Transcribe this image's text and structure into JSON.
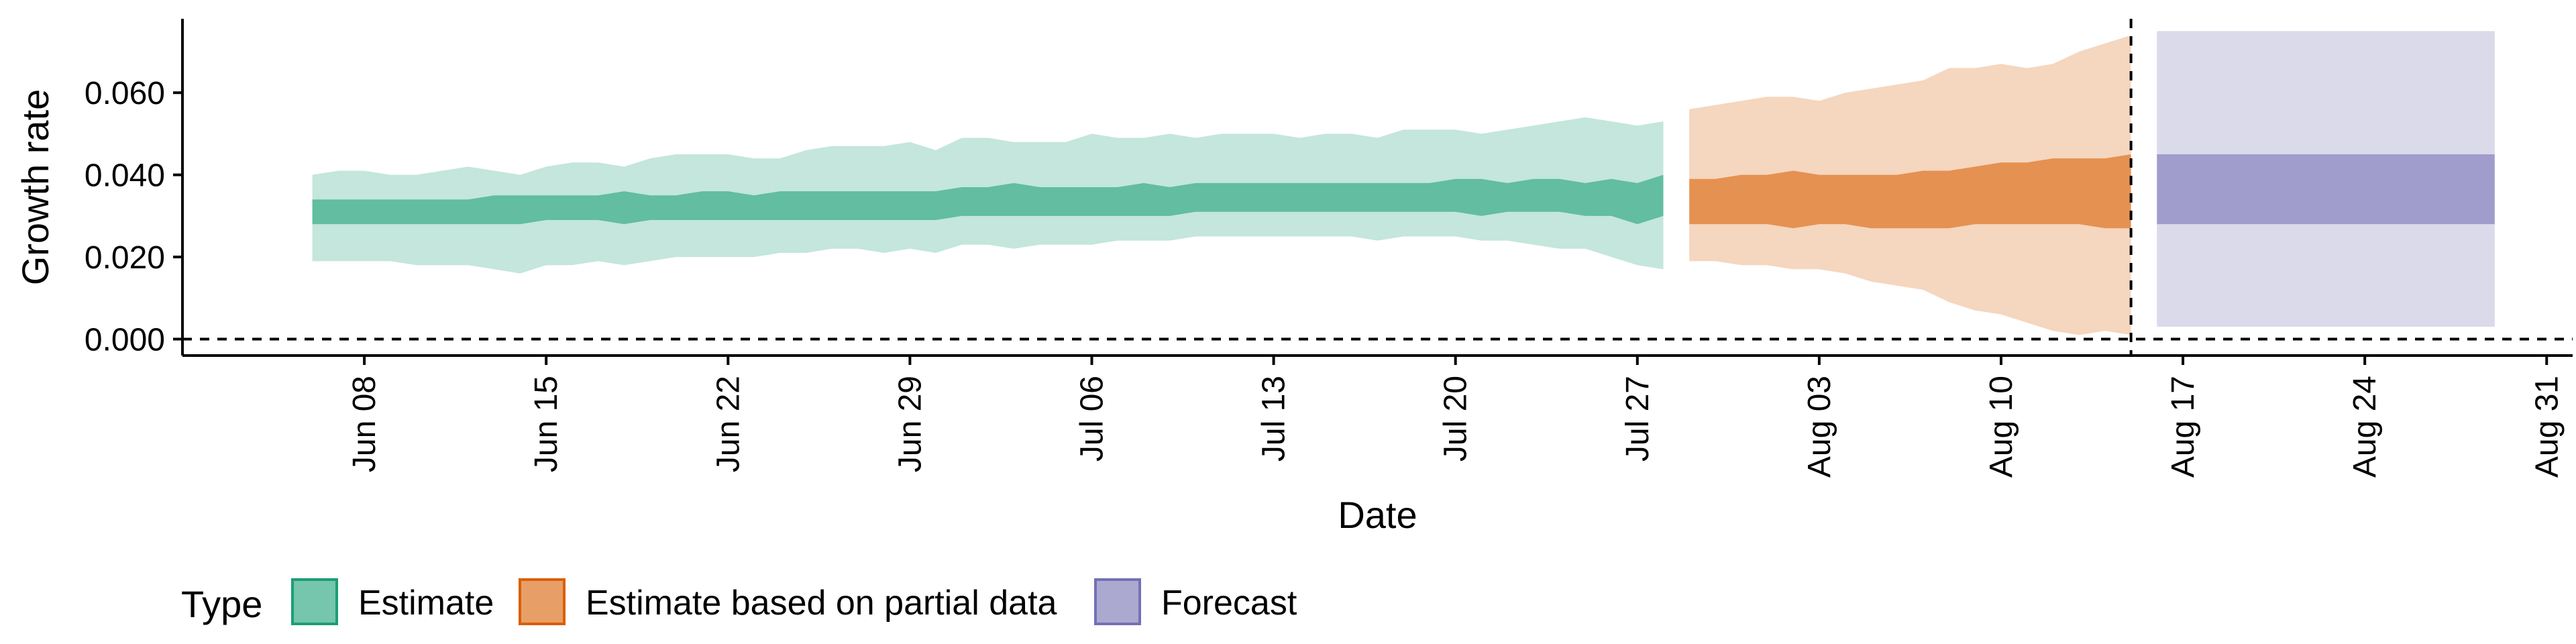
{
  "chart_data": {
    "type": "area",
    "xlabel": "Date",
    "ylabel": "Growth rate",
    "x_range": [
      "2021-06-01",
      "2021-09-01"
    ],
    "ylim": [
      -0.004,
      0.078
    ],
    "y_ticks": [
      0.0,
      0.02,
      0.04,
      0.06
    ],
    "y_tick_labels": [
      "0.000",
      "0.020",
      "0.040",
      "0.060"
    ],
    "x_ticks": [
      {
        "date": "2021-06-08",
        "label": "Jun 08"
      },
      {
        "date": "2021-06-15",
        "label": "Jun 15"
      },
      {
        "date": "2021-06-22",
        "label": "Jun 22"
      },
      {
        "date": "2021-06-29",
        "label": "Jun 29"
      },
      {
        "date": "2021-07-06",
        "label": "Jul 06"
      },
      {
        "date": "2021-07-13",
        "label": "Jul 13"
      },
      {
        "date": "2021-07-20",
        "label": "Jul 20"
      },
      {
        "date": "2021-07-27",
        "label": "Jul 27"
      },
      {
        "date": "2021-08-03",
        "label": "Aug 03"
      },
      {
        "date": "2021-08-10",
        "label": "Aug 10"
      },
      {
        "date": "2021-08-17",
        "label": "Aug 17"
      },
      {
        "date": "2021-08-24",
        "label": "Aug 24"
      },
      {
        "date": "2021-08-31",
        "label": "Aug 31"
      }
    ],
    "reference_lines": [
      {
        "axis": "y",
        "value": 0.0,
        "style": "dashed"
      },
      {
        "axis": "x",
        "date": "2021-08-15",
        "style": "dashed"
      }
    ],
    "legend": {
      "title": "Type",
      "position": "bottom-left",
      "items": [
        "Estimate",
        "Estimate based on partial data",
        "Forecast"
      ]
    },
    "grid": false,
    "series": [
      {
        "name": "Estimate",
        "fill": "#1b9e77",
        "dates": [
          "2021-06-06",
          "2021-06-07",
          "2021-06-08",
          "2021-06-09",
          "2021-06-10",
          "2021-06-11",
          "2021-06-12",
          "2021-06-13",
          "2021-06-14",
          "2021-06-15",
          "2021-06-16",
          "2021-06-17",
          "2021-06-18",
          "2021-06-19",
          "2021-06-20",
          "2021-06-21",
          "2021-06-22",
          "2021-06-23",
          "2021-06-24",
          "2021-06-25",
          "2021-06-26",
          "2021-06-27",
          "2021-06-28",
          "2021-06-29",
          "2021-06-30",
          "2021-07-01",
          "2021-07-02",
          "2021-07-03",
          "2021-07-04",
          "2021-07-05",
          "2021-07-06",
          "2021-07-07",
          "2021-07-08",
          "2021-07-09",
          "2021-07-10",
          "2021-07-11",
          "2021-07-12",
          "2021-07-13",
          "2021-07-14",
          "2021-07-15",
          "2021-07-16",
          "2021-07-17",
          "2021-07-18",
          "2021-07-19",
          "2021-07-20",
          "2021-07-21",
          "2021-07-22",
          "2021-07-23",
          "2021-07-24",
          "2021-07-25",
          "2021-07-26",
          "2021-07-27",
          "2021-07-28"
        ],
        "inner_lower": [
          0.028,
          0.028,
          0.028,
          0.028,
          0.028,
          0.028,
          0.028,
          0.028,
          0.028,
          0.029,
          0.029,
          0.029,
          0.028,
          0.029,
          0.029,
          0.029,
          0.029,
          0.029,
          0.029,
          0.029,
          0.029,
          0.029,
          0.029,
          0.029,
          0.029,
          0.03,
          0.03,
          0.03,
          0.03,
          0.03,
          0.03,
          0.03,
          0.03,
          0.03,
          0.031,
          0.031,
          0.031,
          0.031,
          0.031,
          0.031,
          0.031,
          0.031,
          0.031,
          0.031,
          0.031,
          0.03,
          0.031,
          0.031,
          0.031,
          0.03,
          0.03,
          0.028,
          0.03
        ],
        "inner_upper": [
          0.034,
          0.034,
          0.034,
          0.034,
          0.034,
          0.034,
          0.034,
          0.035,
          0.035,
          0.035,
          0.035,
          0.035,
          0.036,
          0.035,
          0.035,
          0.036,
          0.036,
          0.035,
          0.036,
          0.036,
          0.036,
          0.036,
          0.036,
          0.036,
          0.036,
          0.037,
          0.037,
          0.038,
          0.037,
          0.037,
          0.037,
          0.037,
          0.038,
          0.037,
          0.038,
          0.038,
          0.038,
          0.038,
          0.038,
          0.038,
          0.038,
          0.038,
          0.038,
          0.038,
          0.039,
          0.039,
          0.038,
          0.039,
          0.039,
          0.038,
          0.039,
          0.038,
          0.04
        ],
        "outer_lower": [
          0.019,
          0.019,
          0.019,
          0.019,
          0.018,
          0.018,
          0.018,
          0.017,
          0.016,
          0.018,
          0.018,
          0.019,
          0.018,
          0.019,
          0.02,
          0.02,
          0.02,
          0.02,
          0.021,
          0.021,
          0.022,
          0.022,
          0.021,
          0.022,
          0.021,
          0.023,
          0.023,
          0.022,
          0.023,
          0.023,
          0.023,
          0.024,
          0.024,
          0.024,
          0.025,
          0.025,
          0.025,
          0.025,
          0.025,
          0.025,
          0.025,
          0.024,
          0.025,
          0.025,
          0.025,
          0.024,
          0.024,
          0.023,
          0.022,
          0.022,
          0.02,
          0.018,
          0.017
        ],
        "outer_upper": [
          0.04,
          0.041,
          0.041,
          0.04,
          0.04,
          0.041,
          0.042,
          0.041,
          0.04,
          0.042,
          0.043,
          0.043,
          0.042,
          0.044,
          0.045,
          0.045,
          0.045,
          0.044,
          0.044,
          0.046,
          0.047,
          0.047,
          0.047,
          0.048,
          0.046,
          0.049,
          0.049,
          0.048,
          0.048,
          0.048,
          0.05,
          0.049,
          0.049,
          0.05,
          0.049,
          0.05,
          0.05,
          0.05,
          0.049,
          0.05,
          0.05,
          0.049,
          0.051,
          0.051,
          0.051,
          0.05,
          0.051,
          0.052,
          0.053,
          0.054,
          0.053,
          0.052,
          0.053
        ]
      },
      {
        "name": "Estimate based on partial data",
        "fill": "#d95f02",
        "dates": [
          "2021-07-29",
          "2021-07-30",
          "2021-07-31",
          "2021-08-01",
          "2021-08-02",
          "2021-08-03",
          "2021-08-04",
          "2021-08-05",
          "2021-08-06",
          "2021-08-07",
          "2021-08-08",
          "2021-08-09",
          "2021-08-10",
          "2021-08-11",
          "2021-08-12",
          "2021-08-13",
          "2021-08-14",
          "2021-08-15"
        ],
        "inner_lower": [
          0.028,
          0.028,
          0.028,
          0.028,
          0.027,
          0.028,
          0.028,
          0.027,
          0.027,
          0.027,
          0.027,
          0.028,
          0.028,
          0.028,
          0.028,
          0.028,
          0.027,
          0.027
        ],
        "inner_upper": [
          0.039,
          0.039,
          0.04,
          0.04,
          0.041,
          0.04,
          0.04,
          0.04,
          0.04,
          0.041,
          0.041,
          0.042,
          0.043,
          0.043,
          0.044,
          0.044,
          0.044,
          0.045
        ],
        "outer_lower": [
          0.019,
          0.019,
          0.018,
          0.018,
          0.017,
          0.017,
          0.016,
          0.014,
          0.013,
          0.012,
          0.009,
          0.007,
          0.006,
          0.004,
          0.002,
          0.001,
          0.002,
          0.001
        ],
        "outer_upper": [
          0.056,
          0.057,
          0.058,
          0.059,
          0.059,
          0.058,
          0.06,
          0.061,
          0.062,
          0.063,
          0.066,
          0.066,
          0.067,
          0.066,
          0.067,
          0.07,
          0.072,
          0.074
        ]
      },
      {
        "name": "Forecast",
        "fill": "#7570b3",
        "dates": [
          "2021-08-16",
          "2021-08-29"
        ],
        "inner_lower": [
          0.028,
          0.028
        ],
        "inner_upper": [
          0.045,
          0.045
        ],
        "outer_lower": [
          0.003,
          0.003
        ],
        "outer_upper": [
          0.075,
          0.075
        ]
      }
    ]
  }
}
